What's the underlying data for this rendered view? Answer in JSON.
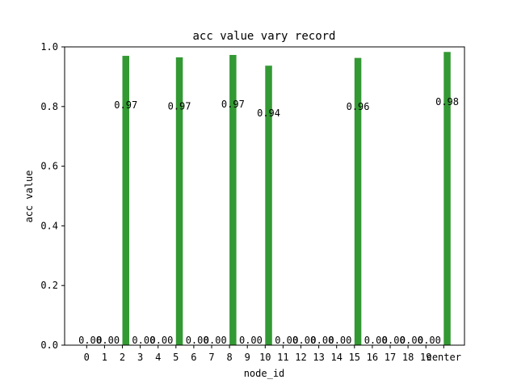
{
  "chart_data": {
    "type": "bar",
    "title": "acc value vary record",
    "xlabel": "node_id",
    "ylabel": "acc value",
    "categories": [
      "0",
      "1",
      "2",
      "3",
      "4",
      "5",
      "6",
      "7",
      "8",
      "9",
      "10",
      "11",
      "12",
      "13",
      "14",
      "15",
      "16",
      "17",
      "18",
      "19",
      "center"
    ],
    "values": [
      0.0,
      0.0,
      0.97,
      0.0,
      0.0,
      0.965,
      0.0,
      0.0,
      0.973,
      0.0,
      0.937,
      0.0,
      0.0,
      0.0,
      0.0,
      0.963,
      0.0,
      0.0,
      0.0,
      0.0,
      0.983
    ],
    "labels": [
      "0.00",
      "0.00",
      "0.97",
      "0.00",
      "0.00",
      "0.97",
      "0.00",
      "0.00",
      "0.97",
      "0.00",
      "0.94",
      "0.00",
      "0.00",
      "0.00",
      "0.00",
      "0.96",
      "0.00",
      "0.00",
      "0.00",
      "0.00",
      "0.98"
    ],
    "ylim": [
      0,
      1.0
    ],
    "yticks": [
      "0.0",
      "0.2",
      "0.4",
      "0.6",
      "0.8",
      "1.0"
    ],
    "bar_color": "#339933",
    "grid": false
  }
}
